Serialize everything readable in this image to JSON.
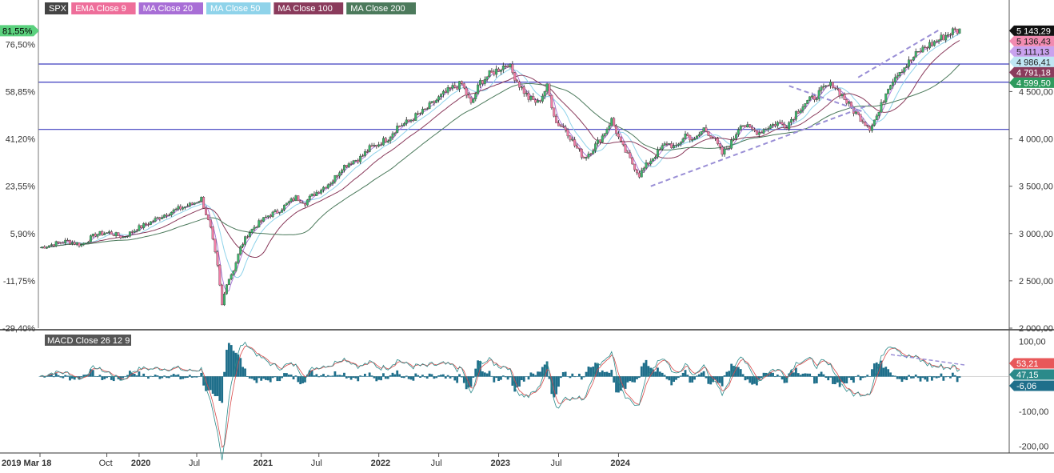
{
  "chart_data": [
    {
      "type": "candlestick",
      "symbol": "SPX",
      "legend": [
        {
          "name": "SPX",
          "color": "#333333"
        },
        {
          "name": "EMA Close 9",
          "color": "#ee6e9a"
        },
        {
          "name": "MA Close 20",
          "color": "#a86ed6"
        },
        {
          "name": "MA Close 50",
          "color": "#8fd3ea"
        },
        {
          "name": "MA Close 100",
          "color": "#8a3b5c"
        },
        {
          "name": "MA Close 200",
          "color": "#4c7a5c"
        }
      ],
      "ylim": [
        2000,
        5400
      ],
      "right_ticks": [
        "2 000,00",
        "2 500,00",
        "3 000,00",
        "3 500,00",
        "4 000,00",
        "4 500,00"
      ],
      "right_tick_values": [
        2000,
        2500,
        3000,
        3500,
        4000,
        4500
      ],
      "left_ticks": [
        "-29,40%",
        "-11,75%",
        "5,90%",
        "23,55%",
        "41,20%",
        "58,85%",
        "76,50%"
      ],
      "left_tick_values": [
        2000,
        2500,
        3000,
        3500,
        4000,
        4500,
        5000
      ],
      "left_current": "81,55%",
      "left_current_value": 5143.29,
      "price_badges": [
        {
          "label": "5 143,29",
          "value": 5143.29,
          "color": "#111111",
          "text_color": "#ffffff"
        },
        {
          "label": "5 136,43",
          "value": 5136.43,
          "color": "#f28bb0",
          "text_color": "#222222"
        },
        {
          "label": "5 111,13",
          "value": 5111.13,
          "color": "#c9a2ee",
          "text_color": "#222222"
        },
        {
          "label": "4 986,41",
          "value": 4986.41,
          "color": "#bfe6f3",
          "text_color": "#222222"
        },
        {
          "label": "4 791,18",
          "value": 4791.18,
          "color": "#8a3b5c",
          "text_color": "#ffffff"
        },
        {
          "label": "4 599,50",
          "value": 4599.5,
          "color": "#2e9b5e",
          "text_color": "#ffffff"
        }
      ],
      "horizontal_levels": [
        4791.18,
        4599.5,
        4100
      ],
      "approx_close_path": [
        [
          0,
          2850
        ],
        [
          6,
          2890
        ],
        [
          12,
          2920
        ],
        [
          18,
          2880
        ],
        [
          24,
          2990
        ],
        [
          30,
          3010
        ],
        [
          36,
          2960
        ],
        [
          42,
          3050
        ],
        [
          48,
          3120
        ],
        [
          54,
          3200
        ],
        [
          60,
          3260
        ],
        [
          66,
          3310
        ],
        [
          70,
          3370
        ],
        [
          74,
          3050
        ],
        [
          77,
          2650
        ],
        [
          79,
          2240
        ],
        [
          81,
          2480
        ],
        [
          84,
          2620
        ],
        [
          87,
          2850
        ],
        [
          90,
          2990
        ],
        [
          93,
          3070
        ],
        [
          96,
          3130
        ],
        [
          99,
          3190
        ],
        [
          103,
          3230
        ],
        [
          107,
          3310
        ],
        [
          111,
          3380
        ],
        [
          115,
          3330
        ],
        [
          119,
          3420
        ],
        [
          123,
          3490
        ],
        [
          127,
          3560
        ],
        [
          131,
          3700
        ],
        [
          135,
          3760
        ],
        [
          139,
          3800
        ],
        [
          143,
          3900
        ],
        [
          147,
          3950
        ],
        [
          151,
          4010
        ],
        [
          155,
          4130
        ],
        [
          159,
          4170
        ],
        [
          163,
          4240
        ],
        [
          167,
          4300
        ],
        [
          171,
          4390
        ],
        [
          175,
          4470
        ],
        [
          179,
          4540
        ],
        [
          183,
          4580
        ],
        [
          187,
          4360
        ],
        [
          191,
          4600
        ],
        [
          195,
          4680
        ],
        [
          199,
          4740
        ],
        [
          203,
          4800
        ],
        [
          205,
          4700
        ],
        [
          208,
          4570
        ],
        [
          212,
          4430
        ],
        [
          216,
          4380
        ],
        [
          220,
          4550
        ],
        [
          224,
          4170
        ],
        [
          228,
          4110
        ],
        [
          232,
          3930
        ],
        [
          236,
          3800
        ],
        [
          240,
          3900
        ],
        [
          244,
          4030
        ],
        [
          248,
          4200
        ],
        [
          252,
          3950
        ],
        [
          256,
          3780
        ],
        [
          260,
          3620
        ],
        [
          264,
          3750
        ],
        [
          268,
          3860
        ],
        [
          272,
          3960
        ],
        [
          276,
          3900
        ],
        [
          280,
          4050
        ],
        [
          284,
          3980
        ],
        [
          288,
          4110
        ],
        [
          292,
          4020
        ],
        [
          296,
          3840
        ],
        [
          300,
          3960
        ],
        [
          304,
          4170
        ],
        [
          308,
          4100
        ],
        [
          312,
          4070
        ],
        [
          316,
          4130
        ],
        [
          320,
          4170
        ],
        [
          324,
          4140
        ],
        [
          328,
          4280
        ],
        [
          332,
          4380
        ],
        [
          336,
          4440
        ],
        [
          340,
          4530
        ],
        [
          344,
          4580
        ],
        [
          348,
          4460
        ],
        [
          352,
          4320
        ],
        [
          356,
          4220
        ],
        [
          360,
          4120
        ],
        [
          364,
          4280
        ],
        [
          368,
          4560
        ],
        [
          372,
          4700
        ],
        [
          376,
          4780
        ],
        [
          380,
          4890
        ],
        [
          384,
          4970
        ],
        [
          388,
          5020
        ],
        [
          392,
          5080
        ],
        [
          396,
          5140
        ],
        [
          399,
          5143
        ]
      ]
    },
    {
      "type": "macd",
      "title": "MACD Close 26 12 9",
      "ylim": [
        -220,
        120
      ],
      "ticks": [
        "100,00",
        "-100,00",
        "-200,00"
      ],
      "tick_values": [
        100,
        -100,
        -200
      ],
      "badges": [
        {
          "label": "53,21",
          "value": 53.21,
          "color": "#e8585a",
          "text_color": "#ffffff"
        },
        {
          "label": "47,15",
          "value": 47.15,
          "color": "#2b8a8a",
          "text_color": "#ffffff"
        },
        {
          "label": "-6,06",
          "value": -6.06,
          "color": "#1f6f8b",
          "text_color": "#ffffff"
        }
      ],
      "x_ticks": [
        {
          "label": "2019 Mar 18",
          "t": 0
        },
        {
          "label": "Oct",
          "t": 29
        },
        {
          "label": "2020",
          "t": 43
        },
        {
          "label": "Jul",
          "t": 68
        },
        {
          "label": "2021",
          "t": 96
        },
        {
          "label": "Jul",
          "t": 121
        },
        {
          "label": "2022",
          "t": 147
        },
        {
          "label": "Jul",
          "t": 173
        },
        {
          "label": "2023",
          "t": 199
        },
        {
          "label": "Jul",
          "t": 225
        },
        {
          "label": "2024",
          "t": 251
        }
      ]
    }
  ]
}
